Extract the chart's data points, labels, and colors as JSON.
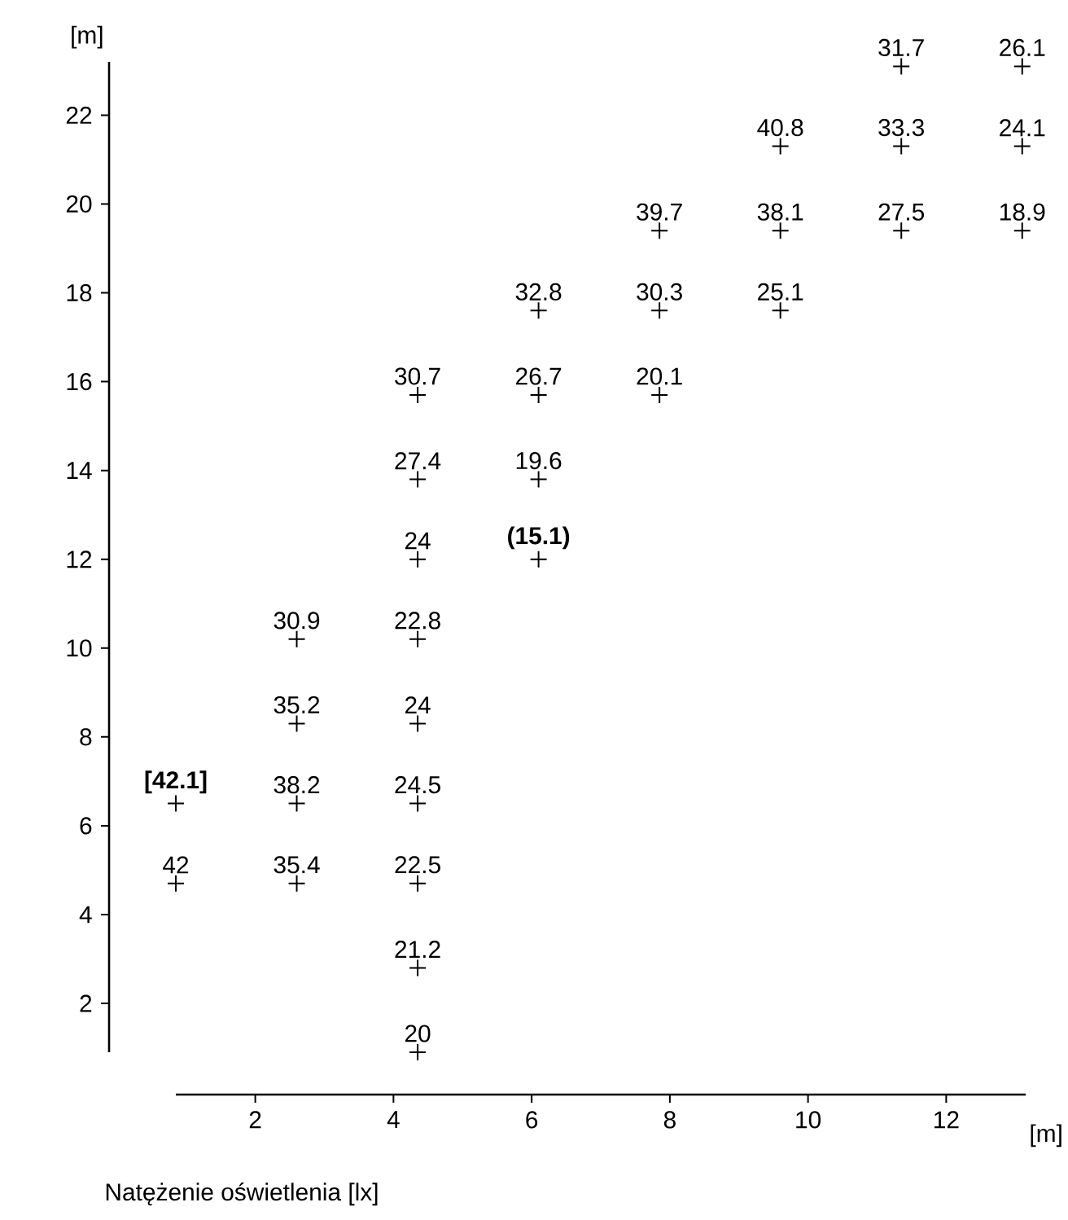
{
  "chart_data": {
    "type": "scatter",
    "xlabel": "[m]",
    "ylabel": "[m]",
    "xlim": [
      0.85,
      13.15
    ],
    "ylim": [
      0.9,
      23.2
    ],
    "xticks": [
      2,
      4,
      6,
      8,
      10,
      12
    ],
    "yticks": [
      2,
      4,
      6,
      8,
      10,
      12,
      14,
      16,
      18,
      20,
      22
    ],
    "marker": "cross",
    "series": [
      {
        "color": "#000000",
        "x": [
          0.85,
          0.85,
          2.6,
          2.6,
          2.6,
          2.6,
          4.35,
          4.35,
          4.35,
          4.35,
          4.35,
          4.35,
          4.35,
          4.35,
          4.35,
          6.1,
          6.1,
          6.1,
          6.1,
          7.85,
          7.85,
          7.85,
          9.6,
          9.6,
          9.6,
          11.35,
          11.35,
          11.35,
          13.1,
          13.1,
          13.1
        ],
        "values": [
          4.7,
          6.5,
          4.7,
          6.5,
          8.3,
          10.2,
          0.9,
          2.8,
          4.7,
          6.5,
          8.3,
          10.2,
          12.0,
          13.8,
          15.7,
          12.0,
          13.8,
          15.7,
          17.6,
          15.7,
          17.6,
          19.4,
          17.6,
          19.4,
          21.3,
          19.4,
          21.3,
          23.1,
          19.4,
          21.3,
          23.1
        ]
      }
    ],
    "annotations": [
      "Natężenie oświetlenia [lx]",
      {
        "text": "42",
        "x": 0.85,
        "y": 4.7
      },
      {
        "text": "**[42.1]**",
        "x": 0.85,
        "y": 6.5
      },
      {
        "text": "35.4",
        "x": 2.6,
        "y": 4.7
      },
      {
        "text": "38.2",
        "x": 2.6,
        "y": 6.5
      },
      {
        "text": "35.2",
        "x": 2.6,
        "y": 8.3
      },
      {
        "text": "30.9",
        "x": 2.6,
        "y": 10.2
      },
      {
        "text": "20",
        "x": 4.35,
        "y": 0.9
      },
      {
        "text": "21.2",
        "x": 4.35,
        "y": 2.8
      },
      {
        "text": "22.5",
        "x": 4.35,
        "y": 4.7
      },
      {
        "text": "24.5",
        "x": 4.35,
        "y": 6.5
      },
      {
        "text": "24",
        "x": 4.35,
        "y": 8.3
      },
      {
        "text": "22.8",
        "x": 4.35,
        "y": 10.2
      },
      {
        "text": "24",
        "x": 4.35,
        "y": 12.0
      },
      {
        "text": "27.4",
        "x": 4.35,
        "y": 13.8
      },
      {
        "text": "30.7",
        "x": 4.35,
        "y": 15.7
      },
      {
        "text": "**(15.1)**",
        "x": 6.1,
        "y": 12.0
      },
      {
        "text": "19.6",
        "x": 6.1,
        "y": 13.8
      },
      {
        "text": "26.7",
        "x": 6.1,
        "y": 15.7
      },
      {
        "text": "32.8",
        "x": 6.1,
        "y": 17.6
      },
      {
        "text": "20.1",
        "x": 7.85,
        "y": 15.7
      },
      {
        "text": "30.3",
        "x": 7.85,
        "y": 17.6
      },
      {
        "text": "39.7",
        "x": 7.85,
        "y": 19.4
      },
      {
        "text": "25.1",
        "x": 9.6,
        "y": 17.6
      },
      {
        "text": "38.1",
        "x": 9.6,
        "y": 19.4
      },
      {
        "text": "40.8",
        "x": 9.6,
        "y": 21.3
      },
      {
        "text": "27.5",
        "x": 11.35,
        "y": 19.4
      },
      {
        "text": "33.3",
        "x": 11.35,
        "y": 21.3
      },
      {
        "text": "31.7",
        "x": 11.35,
        "y": 23.1
      },
      {
        "text": "18.9",
        "x": 13.1,
        "y": 19.4
      },
      {
        "text": "24.1",
        "x": 13.1,
        "y": 21.3
      },
      {
        "text": "26.1",
        "x": 13.1,
        "y": 23.1
      }
    ]
  }
}
